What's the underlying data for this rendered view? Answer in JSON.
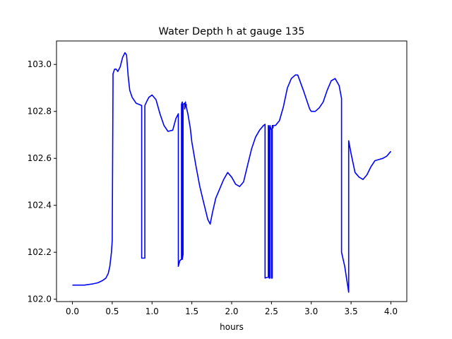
{
  "chart_data": {
    "type": "line",
    "title": "Water Depth h at gauge 135",
    "xlabel": "hours",
    "ylabel": "",
    "xlim": [
      -0.2,
      4.2
    ],
    "ylim": [
      101.99,
      103.1
    ],
    "xticks": [
      0.0,
      0.5,
      1.0,
      1.5,
      2.0,
      2.5,
      3.0,
      3.5,
      4.0
    ],
    "xtick_labels": [
      "0.0",
      "0.5",
      "1.0",
      "1.5",
      "2.0",
      "2.5",
      "3.0",
      "3.5",
      "4.0"
    ],
    "yticks": [
      102.0,
      102.2,
      102.4,
      102.6,
      102.8,
      103.0
    ],
    "ytick_labels": [
      "102.0",
      "102.2",
      "102.4",
      "102.6",
      "102.8",
      "103.0"
    ],
    "grid": false,
    "series": [
      {
        "color": "#0000ff",
        "x": [
          0.0,
          0.15,
          0.25,
          0.32,
          0.38,
          0.42,
          0.45,
          0.47,
          0.49,
          0.5,
          0.51,
          0.51,
          0.53,
          0.55,
          0.57,
          0.6,
          0.63,
          0.66,
          0.68,
          0.7,
          0.72,
          0.75,
          0.8,
          0.87,
          0.87,
          0.91,
          0.91,
          0.93,
          0.96,
          1.0,
          1.05,
          1.1,
          1.15,
          1.2,
          1.26,
          1.3,
          1.33,
          1.33,
          1.35,
          1.37,
          1.37,
          1.38,
          1.38,
          1.39,
          1.39,
          1.41,
          1.41,
          1.42,
          1.42,
          1.43,
          1.43,
          1.45,
          1.48,
          1.5,
          1.55,
          1.6,
          1.65,
          1.7,
          1.73,
          1.76,
          1.8,
          1.85,
          1.9,
          1.95,
          2.0,
          2.05,
          2.1,
          2.15,
          2.2,
          2.25,
          2.3,
          2.35,
          2.4,
          2.42,
          2.42,
          2.46,
          2.46,
          2.47,
          2.47,
          2.48,
          2.48,
          2.5,
          2.5,
          2.51,
          2.51,
          2.52,
          2.52,
          2.55,
          2.6,
          2.65,
          2.7,
          2.75,
          2.8,
          2.83,
          2.9,
          2.95,
          2.98,
          3.0,
          3.05,
          3.1,
          3.15,
          3.2,
          3.25,
          3.3,
          3.35,
          3.38,
          3.38,
          3.42,
          3.47,
          3.47,
          3.5,
          3.55,
          3.6,
          3.65,
          3.7,
          3.75,
          3.8,
          3.85,
          3.9,
          3.95,
          4.0
        ],
        "y": [
          102.06,
          102.06,
          102.065,
          102.07,
          102.08,
          102.09,
          102.11,
          102.14,
          102.2,
          102.25,
          102.92,
          102.96,
          102.98,
          102.98,
          102.97,
          102.99,
          103.03,
          103.05,
          103.04,
          102.95,
          102.89,
          102.86,
          102.835,
          102.825,
          102.175,
          102.175,
          102.825,
          102.84,
          102.86,
          102.87,
          102.85,
          102.79,
          102.74,
          102.715,
          102.72,
          102.77,
          102.79,
          102.14,
          102.165,
          102.17,
          102.83,
          102.84,
          102.17,
          102.19,
          102.83,
          102.835,
          102.81,
          102.84,
          102.82,
          102.83,
          102.82,
          102.79,
          102.73,
          102.67,
          102.57,
          102.48,
          102.41,
          102.34,
          102.32,
          102.37,
          102.43,
          102.47,
          102.51,
          102.54,
          102.52,
          102.49,
          102.48,
          102.5,
          102.57,
          102.64,
          102.69,
          102.72,
          102.74,
          102.745,
          102.09,
          102.095,
          102.74,
          102.73,
          102.09,
          102.09,
          102.74,
          102.72,
          102.09,
          102.09,
          102.74,
          102.73,
          102.74,
          102.74,
          102.76,
          102.82,
          102.9,
          102.94,
          102.955,
          102.955,
          102.89,
          102.84,
          102.81,
          102.8,
          102.8,
          102.815,
          102.84,
          102.89,
          102.93,
          102.94,
          102.91,
          102.855,
          102.2,
          102.14,
          102.03,
          102.675,
          102.62,
          102.54,
          102.52,
          102.51,
          102.53,
          102.565,
          102.59,
          102.595,
          102.6,
          102.61,
          102.63
        ]
      }
    ]
  }
}
